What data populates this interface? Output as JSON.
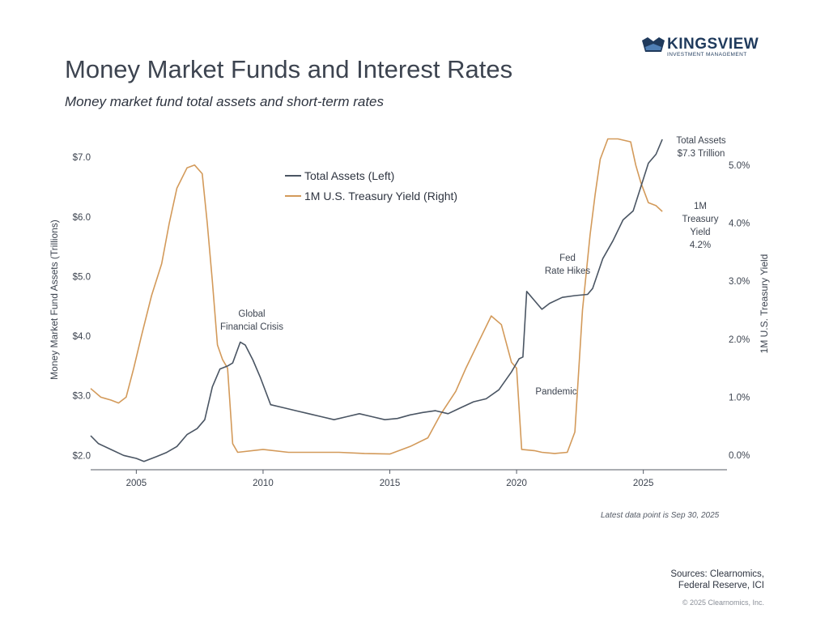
{
  "brand": {
    "name": "KINGSVIEW",
    "tagline": "INVESTMENT MANAGEMENT",
    "color": "#1f3a5c"
  },
  "header": {
    "title": "Money Market Funds and Interest Rates",
    "subtitle": "Money market fund total assets and short-term rates"
  },
  "chart_data": {
    "type": "line",
    "x_ticks": [
      "2005",
      "2010",
      "2015",
      "2020",
      "2025"
    ],
    "xlim": [
      2003.2,
      2028.3
    ],
    "left_axis": {
      "label": "Money Market Fund Assets (Trillions)",
      "ticks": [
        "$2.0",
        "$3.0",
        "$4.0",
        "$5.0",
        "$6.0",
        "$7.0"
      ],
      "range": [
        1.76,
        7.6
      ]
    },
    "right_axis": {
      "label": "1M U.S. Treasury Yield",
      "ticks": [
        "0.0%",
        "1.0%",
        "2.0%",
        "3.0%",
        "4.0%",
        "5.0%"
      ],
      "range": [
        -0.25,
        5.75
      ]
    },
    "legend": {
      "position": "top-center",
      "entries": [
        "Total Assets (Left)",
        "1M U.S. Treasury Yield (Right)"
      ]
    },
    "series": [
      {
        "name": "Total Assets (Left)",
        "axis": "left",
        "color": "#4a5563",
        "points": [
          [
            2003.2,
            2.33
          ],
          [
            2003.5,
            2.2
          ],
          [
            2004.0,
            2.1
          ],
          [
            2004.5,
            2.0
          ],
          [
            2005.0,
            1.95
          ],
          [
            2005.3,
            1.9
          ],
          [
            2005.8,
            1.98
          ],
          [
            2006.2,
            2.05
          ],
          [
            2006.6,
            2.15
          ],
          [
            2007.0,
            2.35
          ],
          [
            2007.4,
            2.45
          ],
          [
            2007.7,
            2.6
          ],
          [
            2008.0,
            3.15
          ],
          [
            2008.3,
            3.45
          ],
          [
            2008.6,
            3.5
          ],
          [
            2008.8,
            3.55
          ],
          [
            2009.1,
            3.9
          ],
          [
            2009.3,
            3.85
          ],
          [
            2009.6,
            3.6
          ],
          [
            2009.9,
            3.3
          ],
          [
            2010.3,
            2.85
          ],
          [
            2010.8,
            2.8
          ],
          [
            2011.3,
            2.75
          ],
          [
            2011.8,
            2.7
          ],
          [
            2012.3,
            2.65
          ],
          [
            2012.8,
            2.6
          ],
          [
            2013.3,
            2.65
          ],
          [
            2013.8,
            2.7
          ],
          [
            2014.3,
            2.65
          ],
          [
            2014.8,
            2.6
          ],
          [
            2015.3,
            2.62
          ],
          [
            2015.8,
            2.68
          ],
          [
            2016.3,
            2.72
          ],
          [
            2016.8,
            2.75
          ],
          [
            2017.3,
            2.7
          ],
          [
            2017.8,
            2.8
          ],
          [
            2018.3,
            2.9
          ],
          [
            2018.8,
            2.95
          ],
          [
            2019.3,
            3.1
          ],
          [
            2019.8,
            3.4
          ],
          [
            2020.1,
            3.62
          ],
          [
            2020.25,
            3.65
          ],
          [
            2020.4,
            4.75
          ],
          [
            2020.7,
            4.6
          ],
          [
            2021.0,
            4.45
          ],
          [
            2021.3,
            4.55
          ],
          [
            2021.8,
            4.65
          ],
          [
            2022.3,
            4.68
          ],
          [
            2022.8,
            4.7
          ],
          [
            2023.0,
            4.8
          ],
          [
            2023.4,
            5.3
          ],
          [
            2023.8,
            5.6
          ],
          [
            2024.2,
            5.95
          ],
          [
            2024.6,
            6.1
          ],
          [
            2024.9,
            6.5
          ],
          [
            2025.2,
            6.9
          ],
          [
            2025.5,
            7.05
          ],
          [
            2025.75,
            7.3
          ]
        ]
      },
      {
        "name": "1M U.S. Treasury Yield (Right)",
        "axis": "right",
        "color": "#d39a5a",
        "points": [
          [
            2003.2,
            1.15
          ],
          [
            2003.6,
            1.0
          ],
          [
            2004.0,
            0.95
          ],
          [
            2004.3,
            0.9
          ],
          [
            2004.6,
            1.0
          ],
          [
            2004.9,
            1.5
          ],
          [
            2005.2,
            2.05
          ],
          [
            2005.6,
            2.75
          ],
          [
            2006.0,
            3.3
          ],
          [
            2006.3,
            4.0
          ],
          [
            2006.6,
            4.6
          ],
          [
            2007.0,
            4.95
          ],
          [
            2007.3,
            5.0
          ],
          [
            2007.6,
            4.85
          ],
          [
            2007.8,
            4.0
          ],
          [
            2008.0,
            3.0
          ],
          [
            2008.2,
            1.9
          ],
          [
            2008.4,
            1.65
          ],
          [
            2008.6,
            1.5
          ],
          [
            2008.8,
            0.2
          ],
          [
            2009.0,
            0.05
          ],
          [
            2010.0,
            0.1
          ],
          [
            2011.0,
            0.05
          ],
          [
            2012.0,
            0.05
          ],
          [
            2013.0,
            0.05
          ],
          [
            2014.0,
            0.03
          ],
          [
            2015.0,
            0.02
          ],
          [
            2015.8,
            0.15
          ],
          [
            2016.5,
            0.3
          ],
          [
            2017.0,
            0.7
          ],
          [
            2017.6,
            1.1
          ],
          [
            2018.0,
            1.5
          ],
          [
            2018.5,
            1.95
          ],
          [
            2019.0,
            2.4
          ],
          [
            2019.4,
            2.25
          ],
          [
            2019.8,
            1.6
          ],
          [
            2020.0,
            1.5
          ],
          [
            2020.2,
            0.1
          ],
          [
            2020.7,
            0.08
          ],
          [
            2021.0,
            0.05
          ],
          [
            2021.5,
            0.03
          ],
          [
            2022.0,
            0.05
          ],
          [
            2022.3,
            0.4
          ],
          [
            2022.6,
            2.5
          ],
          [
            2022.9,
            3.8
          ],
          [
            2023.1,
            4.5
          ],
          [
            2023.3,
            5.1
          ],
          [
            2023.6,
            5.45
          ],
          [
            2024.0,
            5.45
          ],
          [
            2024.5,
            5.4
          ],
          [
            2024.7,
            5.0
          ],
          [
            2024.9,
            4.7
          ],
          [
            2025.2,
            4.35
          ],
          [
            2025.5,
            4.3
          ],
          [
            2025.75,
            4.2
          ]
        ]
      }
    ],
    "annotations": [
      {
        "id": "gfc",
        "lines": [
          "Global",
          "Financial Crisis"
        ]
      },
      {
        "id": "fed",
        "lines": [
          "Fed",
          "Rate Hikes"
        ]
      },
      {
        "id": "pandemic",
        "lines": [
          "Pandemic"
        ]
      },
      {
        "id": "total",
        "lines": [
          "Total Assets",
          "$7.3 Trillion"
        ]
      },
      {
        "id": "yield",
        "lines": [
          "1M",
          "Treasury",
          "Yield",
          "4.2%"
        ]
      }
    ]
  },
  "footer": {
    "latest": "Latest data point is Sep 30, 2025",
    "sources_line1": "Sources: Clearnomics,",
    "sources_line2": "Federal Reserve, ICI",
    "copyright": "© 2025 Clearnomics, Inc."
  }
}
